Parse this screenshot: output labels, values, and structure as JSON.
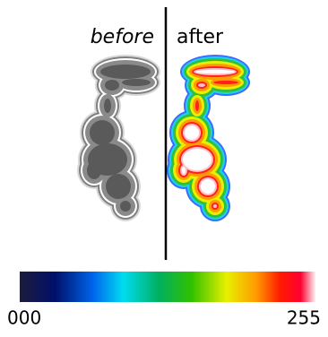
{
  "labels": {
    "before": "before",
    "after": "after"
  },
  "colorbar": {
    "min_label": "000",
    "max_label": "255"
  }
}
